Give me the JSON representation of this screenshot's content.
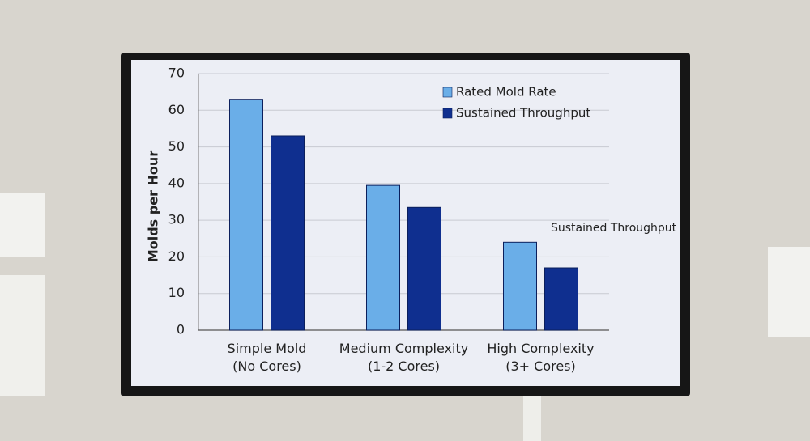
{
  "chart_data": {
    "type": "bar",
    "y_label": "Molds per Hour",
    "categories": [
      "Simple Mold\n(No Cores)",
      "Medium Complexity\n(1-2 Cores)",
      "High Complexity\n(3+ Cores)"
    ],
    "series": [
      {
        "name": "Rated Mold Rate",
        "color": "#6aaee8",
        "values": [
          63,
          39.5,
          24
        ]
      },
      {
        "name": "Sustained Throughput",
        "color": "#0f2f8f",
        "values": [
          53,
          33.5,
          17
        ]
      }
    ],
    "annotation": "Sustained Throughput",
    "ylim": [
      0,
      70
    ],
    "yticks": [
      0,
      10,
      20,
      30,
      40,
      50,
      60,
      70
    ],
    "grid": true,
    "legend": "top-right"
  }
}
